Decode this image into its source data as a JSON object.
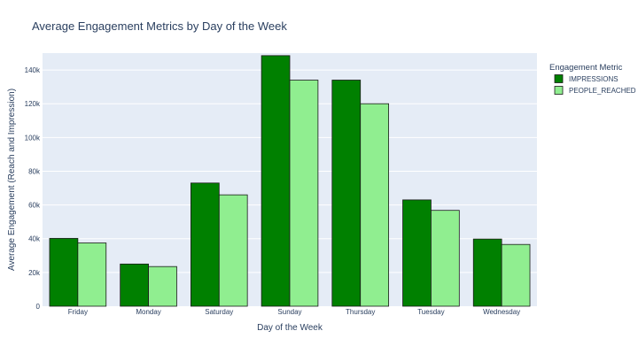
{
  "chart_data": {
    "type": "bar",
    "title": "Average Engagement Metrics by Day of the Week",
    "xlabel": "Day of the Week",
    "ylabel": "Average Engagement (Reach and Impression)",
    "categories": [
      "Friday",
      "Monday",
      "Saturday",
      "Sunday",
      "Thursday",
      "Tuesday",
      "Wednesday"
    ],
    "series": [
      {
        "name": "IMPRESSIONS",
        "color": "#008000",
        "values": [
          40200,
          25000,
          73000,
          148500,
          134000,
          63000,
          39800
        ]
      },
      {
        "name": "PEOPLE_REACHED",
        "color": "#90EE90",
        "values": [
          37500,
          23500,
          66000,
          134000,
          120000,
          56800,
          36600
        ]
      }
    ],
    "ylim": [
      0,
      150000
    ],
    "yticks": [
      0,
      20000,
      40000,
      60000,
      80000,
      100000,
      120000,
      140000
    ],
    "ytick_labels": [
      "0",
      "20k",
      "40k",
      "60k",
      "80k",
      "100k",
      "120k",
      "140k"
    ],
    "grid": true,
    "legend": {
      "title": "Engagement Metric",
      "position": "right"
    },
    "plot_background": "#E5ECF6"
  }
}
